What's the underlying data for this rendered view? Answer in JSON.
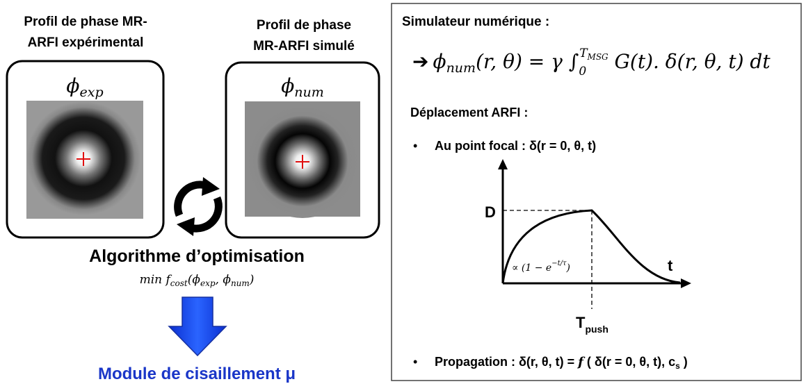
{
  "left": {
    "experimental": {
      "title_lines": [
        "Profil de phase MR-",
        "ARFI expérimental"
      ],
      "symbol": "ϕ",
      "subscript": "exp"
    },
    "simulated": {
      "title_lines": [
        "Profil de phase",
        "MR-ARFI simulé"
      ],
      "symbol": "ϕ",
      "subscript": "num"
    },
    "algorithm": {
      "title": "Algorithme d’optimisation",
      "formula": {
        "min": "min",
        "f": "f",
        "f_sub": "cost",
        "open": "(",
        "a": "ϕ",
        "a_sub": "exp",
        "sep": ", ",
        "b": "ϕ",
        "b_sub": "num",
        "close": ")"
      }
    },
    "result": "Module de cisaillement μ"
  },
  "right": {
    "title": "Simulateur numérique :",
    "equation": {
      "arrow": "➔",
      "lhs": "ϕ",
      "lhs_sub": "num",
      "args": "(r, θ) = γ ∫",
      "lower": "0",
      "upper": "T",
      "upper_sub": "MSG",
      "rhs": " G(t). δ(r, θ, t) dt"
    },
    "section": "Déplacement ARFI :",
    "bullet1": "Au point focal : δ(r = 0, θ, t)",
    "graph": {
      "y_label": "D",
      "x_label": "t",
      "marker": "T",
      "marker_sub": "push",
      "annotation": {
        "base": "∝ (1 − e",
        "exponent": "−t/τ",
        "close": ")"
      }
    },
    "bullet2": {
      "text": "Propagation : δ(r, θ, t) = ",
      "f": "f",
      "args": " ( δ(r = 0, θ, t), c",
      "sub": "s",
      "close": " )"
    }
  }
}
